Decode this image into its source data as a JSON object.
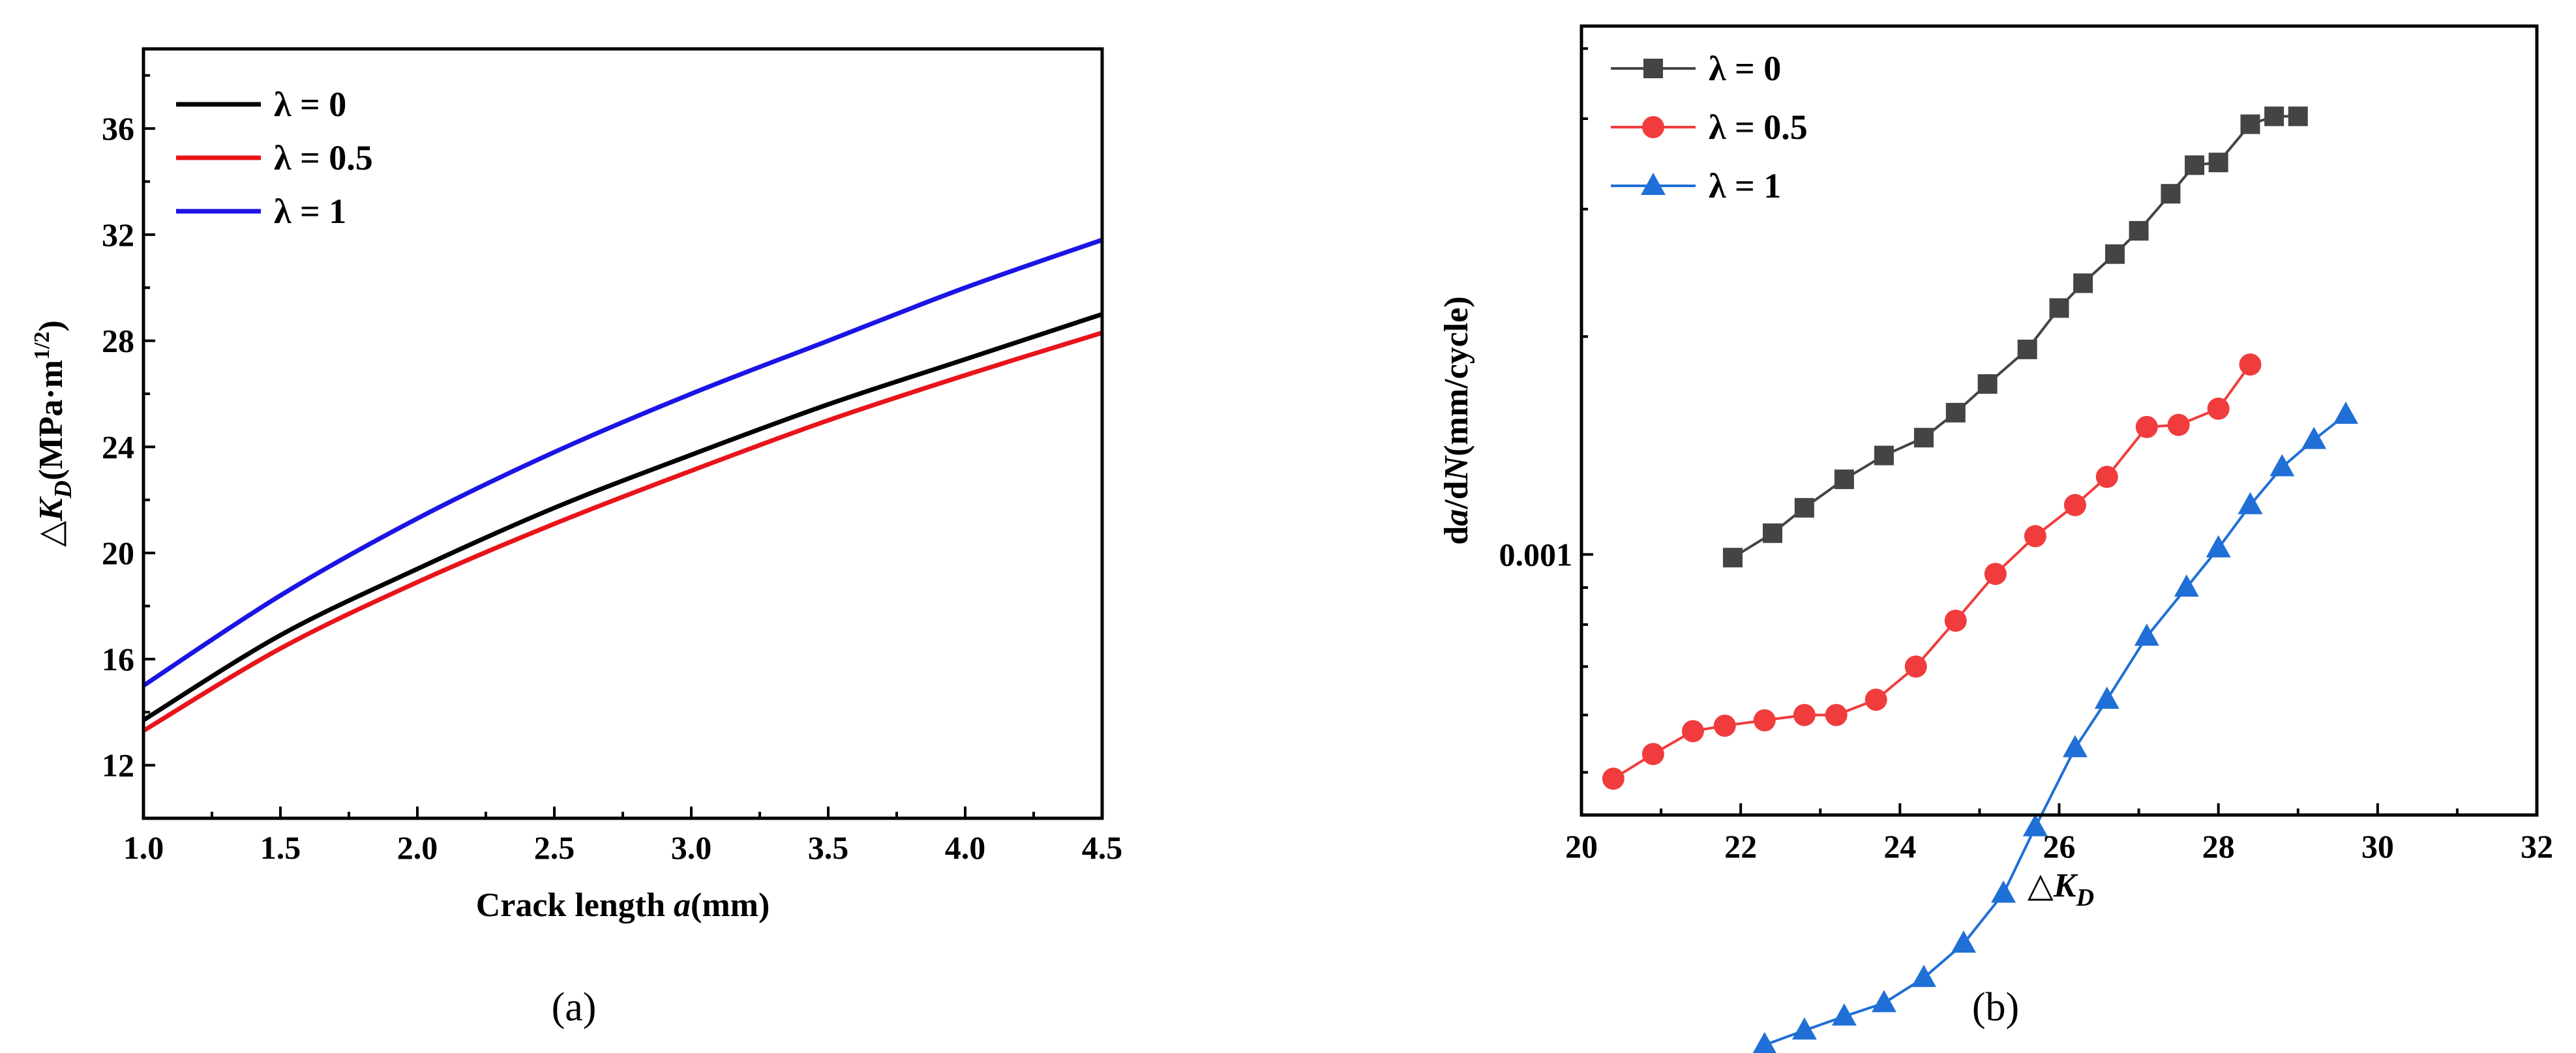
{
  "figure": {
    "panel_a_label": "(a)",
    "panel_b_label": "(b)"
  },
  "chart_data": [
    {
      "type": "line",
      "panel": "a",
      "title": "",
      "xlabel_prefix": "Crack length ",
      "xlabel_var": "a",
      "xlabel_suffix": "(mm)",
      "ylabel_prefix": "△K",
      "ylabel_sub": "D",
      "ylabel_units": "(MPa·m",
      "ylabel_sup": "1/2",
      "ylabel_close": ")",
      "xlim": [
        1.0,
        4.5
      ],
      "ylim": [
        10,
        39
      ],
      "xticks": [
        1.0,
        1.5,
        2.0,
        2.5,
        3.0,
        3.5,
        4.0,
        4.5
      ],
      "xtick_labels": [
        "1.0",
        "1.5",
        "2.0",
        "2.5",
        "3.0",
        "3.5",
        "4.0",
        "4.5"
      ],
      "yticks": [
        12,
        16,
        20,
        24,
        28,
        32,
        36
      ],
      "ytick_labels": [
        "12",
        "16",
        "20",
        "24",
        "28",
        "32",
        "36"
      ],
      "legend_position": "top-left",
      "x": [
        1.0,
        1.5,
        2.0,
        2.5,
        3.0,
        3.5,
        4.0,
        4.5
      ],
      "series": [
        {
          "name": "λ = 0",
          "color": "#000000",
          "values": [
            13.7,
            16.9,
            19.4,
            21.7,
            23.7,
            25.6,
            27.3,
            29.0
          ]
        },
        {
          "name": "λ = 0.5",
          "color": "#e8141a",
          "values": [
            13.3,
            16.4,
            18.9,
            21.1,
            23.1,
            25.0,
            26.7,
            28.3
          ]
        },
        {
          "name": "λ = 1",
          "color": "#1a14e6",
          "values": [
            15.0,
            18.4,
            21.3,
            23.8,
            26.0,
            28.0,
            30.0,
            31.8
          ]
        }
      ]
    },
    {
      "type": "scatter",
      "panel": "b",
      "title": "",
      "xlabel_prefix": "△K",
      "xlabel_sub": "D",
      "ylabel_p1": "d",
      "ylabel_p2": "a",
      "ylabel_p3": "/d",
      "ylabel_p4": "N",
      "ylabel_p5": "(mm/cycle)",
      "xlim": [
        20,
        32
      ],
      "ylim_log10": [
        -3.36,
        -2.27
      ],
      "xticks": [
        20,
        22,
        24,
        26,
        28,
        30,
        32
      ],
      "xtick_labels": [
        "20",
        "22",
        "24",
        "26",
        "28",
        "30",
        "32"
      ],
      "yticks": [
        0.001
      ],
      "ytick_labels": [
        "0.001"
      ],
      "yscale": "log",
      "legend_position": "top-left",
      "series": [
        {
          "name": "λ = 0",
          "color": "#444444",
          "marker": "square",
          "x": [
            21.9,
            22.4,
            22.8,
            23.3,
            23.8,
            24.3,
            24.7,
            25.1,
            25.6,
            26.0,
            26.3,
            26.7,
            27.0,
            27.4,
            27.7,
            28.0,
            28.4,
            28.7,
            29.0
          ],
          "y": [
            0.00099,
            0.00107,
            0.00116,
            0.00127,
            0.00137,
            0.00145,
            0.00157,
            0.00172,
            0.00192,
            0.00219,
            0.00237,
            0.0026,
            0.0028,
            0.00315,
            0.00345,
            0.00348,
            0.00393,
            0.00403,
            0.00403
          ]
        },
        {
          "name": "λ = 0.5",
          "color": "#f03c3c",
          "marker": "circle",
          "x": [
            20.4,
            20.9,
            21.4,
            21.8,
            22.3,
            22.8,
            23.2,
            23.7,
            24.2,
            24.7,
            25.2,
            25.7,
            26.2,
            26.6,
            27.1,
            27.5,
            28.0,
            28.4
          ],
          "y": [
            0.00049,
            0.00053,
            0.00057,
            0.00058,
            0.00059,
            0.0006,
            0.0006,
            0.00063,
            0.0007,
            0.00081,
            0.00094,
            0.00106,
            0.00117,
            0.00128,
            0.0015,
            0.00151,
            0.00159,
            0.00183
          ]
        },
        {
          "name": "λ = 1",
          "color": "#1f6fd6",
          "marker": "triangle",
          "x": [
            22.3,
            22.8,
            23.3,
            23.8,
            24.3,
            24.8,
            25.3,
            25.7,
            26.2,
            26.6,
            27.1,
            27.6,
            28.0,
            28.4,
            28.8,
            29.2,
            29.6
          ],
          "y": [
            0.00021,
            0.00022,
            0.00023,
            0.00024,
            0.00026,
            0.00029,
            0.00034,
            0.00042,
            0.00054,
            0.00063,
            0.00077,
            0.0009,
            0.00102,
            0.00117,
            0.00132,
            0.00144,
            0.00156
          ]
        }
      ]
    }
  ]
}
